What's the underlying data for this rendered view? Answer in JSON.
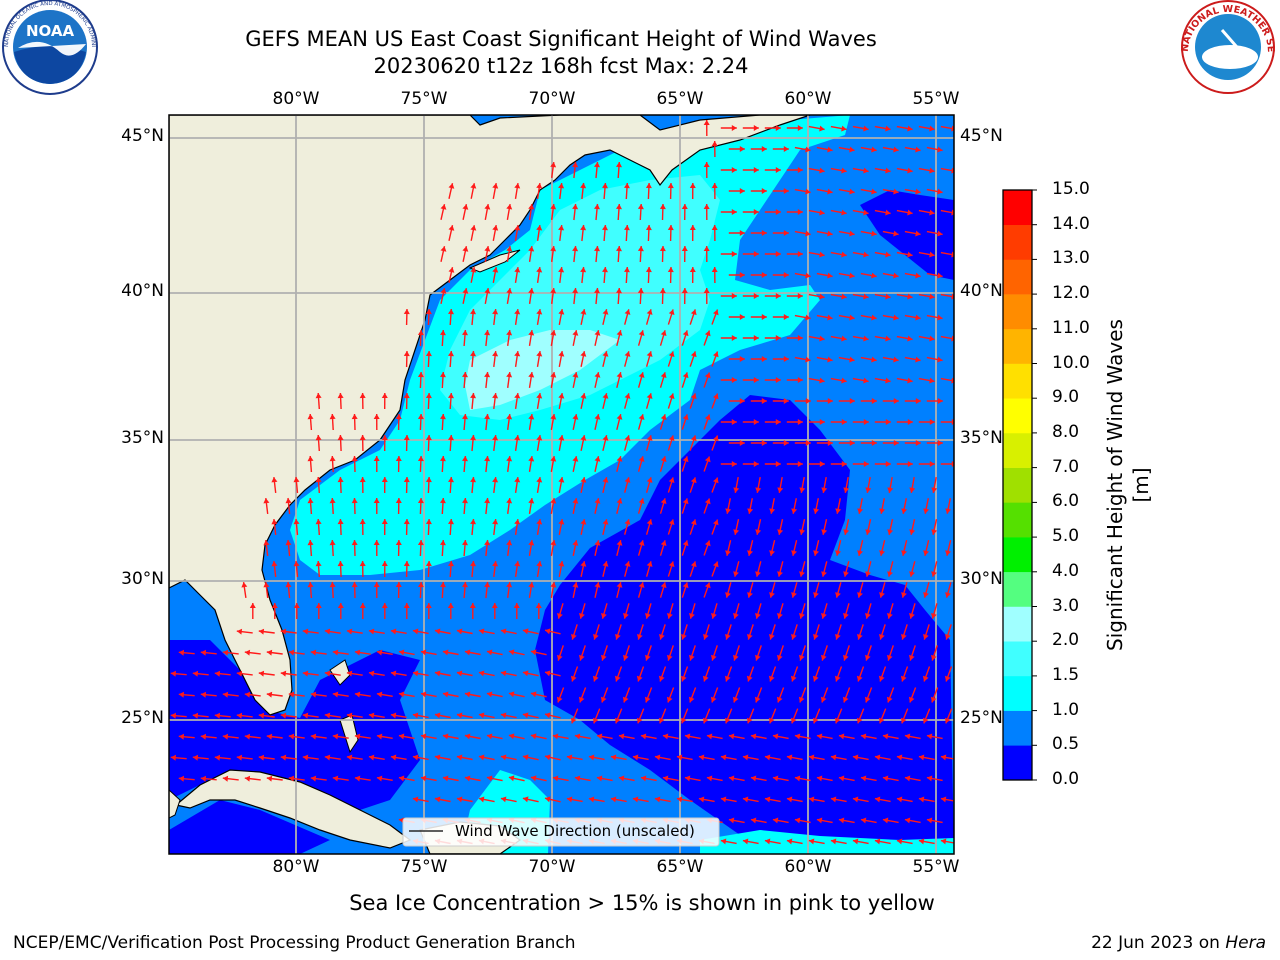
{
  "header": {
    "title_line1": "GEFS MEAN US East Coast Significant Height of Wind Waves",
    "title_line2": "20230620 t12z 168h fcst   Max: 2.24",
    "noaa_logo_text": "NOAA",
    "noaa_logo_ring_text": "NATIONAL OCEANIC AND ATMOSPHERIC ADMINISTRATION · U.S. DEPARTMENT OF COMMERCE",
    "nws_logo_ring_text": "NATIONAL WEATHER SERVICE"
  },
  "map": {
    "lon_ticks": [
      "80°W",
      "75°W",
      "70°W",
      "65°W",
      "60°W",
      "55°W"
    ],
    "lat_ticks": [
      "45°N",
      "40°N",
      "35°N",
      "30°N",
      "25°N"
    ],
    "lon_range": [
      -85,
      -54.4
    ],
    "lat_range": [
      20,
      46
    ],
    "legend_label": "Wind Wave Direction (unscaled)",
    "colors": {
      "land": "#efeedc",
      "coast": "#000000",
      "grid": "#b0b0b0",
      "arrow": "#ff1a1a",
      "wave_0_0_5": "#0000ff",
      "wave_0_5_1": "#0080ff",
      "wave_1_1_5": "#00ffff",
      "wave_1_5_2": "#40ffff",
      "wave_2_3": "#a0ffff"
    }
  },
  "colorbar": {
    "label": "Significant Height of Wind Waves [m]",
    "tick_labels": [
      "0.0",
      "0.5",
      "1.0",
      "1.5",
      "2.0",
      "3.0",
      "4.0",
      "5.0",
      "6.0",
      "7.0",
      "8.0",
      "9.0",
      "10.0",
      "11.0",
      "12.0",
      "13.0",
      "14.0",
      "15.0"
    ],
    "colors": [
      "#0000ff",
      "#0080ff",
      "#00ffff",
      "#40ffff",
      "#a0ffff",
      "#54fe80",
      "#00f000",
      "#55e000",
      "#a0e000",
      "#d8f000",
      "#ffff00",
      "#ffe000",
      "#ffb400",
      "#ff8c00",
      "#ff6400",
      "#ff3c00",
      "#ff0000"
    ]
  },
  "footer": {
    "sea_ice_note": "Sea Ice Concentration > 15% is shown in pink to yellow",
    "branch": "NCEP/EMC/Verification Post Processing Product Generation Branch",
    "date": "22 Jun 2023 on",
    "machine": "Hera"
  }
}
